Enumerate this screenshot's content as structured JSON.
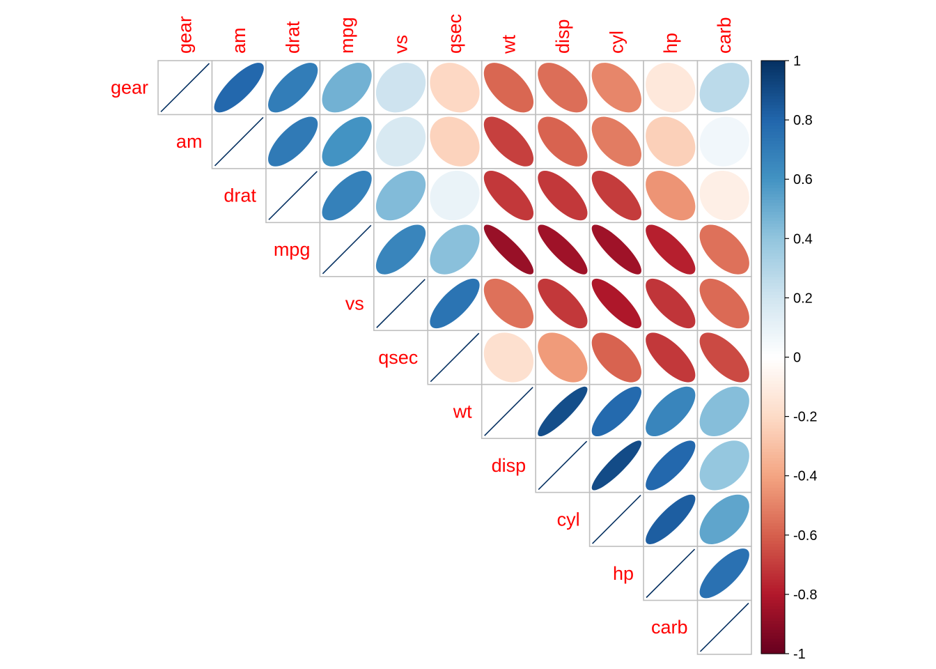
{
  "chart_data": {
    "type": "heatmap",
    "variables": [
      "gear",
      "am",
      "drat",
      "mpg",
      "vs",
      "qsec",
      "wt",
      "disp",
      "cyl",
      "hp",
      "carb"
    ],
    "matrix": [
      [
        1.0,
        0.79,
        0.7,
        0.48,
        0.21,
        -0.21,
        -0.58,
        -0.56,
        -0.49,
        -0.13,
        0.27
      ],
      [
        0.79,
        1.0,
        0.71,
        0.6,
        0.17,
        -0.23,
        -0.69,
        -0.59,
        -0.52,
        -0.24,
        0.06
      ],
      [
        0.7,
        0.71,
        1.0,
        0.68,
        0.44,
        0.09,
        -0.71,
        -0.71,
        -0.7,
        -0.45,
        -0.09
      ],
      [
        0.48,
        0.6,
        0.68,
        1.0,
        0.66,
        0.42,
        -0.87,
        -0.85,
        -0.85,
        -0.78,
        -0.55
      ],
      [
        0.21,
        0.17,
        0.44,
        0.66,
        1.0,
        0.74,
        -0.55,
        -0.71,
        -0.81,
        -0.72,
        -0.57
      ],
      [
        -0.21,
        -0.23,
        0.09,
        0.42,
        0.74,
        1.0,
        -0.17,
        -0.43,
        -0.59,
        -0.71,
        -0.66
      ],
      [
        -0.58,
        -0.69,
        -0.71,
        -0.87,
        -0.55,
        -0.17,
        1.0,
        0.89,
        0.78,
        0.66,
        0.43
      ],
      [
        -0.56,
        -0.59,
        -0.71,
        -0.85,
        -0.71,
        -0.43,
        0.89,
        1.0,
        0.9,
        0.79,
        0.39
      ],
      [
        -0.49,
        -0.52,
        -0.7,
        -0.85,
        -0.81,
        -0.59,
        0.78,
        0.9,
        1.0,
        0.83,
        0.53
      ],
      [
        -0.13,
        -0.24,
        -0.45,
        -0.78,
        -0.72,
        -0.71,
        0.66,
        0.79,
        0.83,
        1.0,
        0.75
      ],
      [
        0.27,
        0.06,
        -0.09,
        -0.55,
        -0.57,
        -0.66,
        0.43,
        0.39,
        0.53,
        0.75,
        1.0
      ]
    ],
    "display": "upper-triangle",
    "glyph": "ellipse",
    "label_color": "#ff0000",
    "colorbar": {
      "range": [
        -1,
        1
      ],
      "ticks": [
        "1",
        "0.8",
        "0.6",
        "0.4",
        "0.2",
        "0",
        "-0.2",
        "-0.4",
        "-0.6",
        "-0.8",
        "-1"
      ],
      "colors": [
        "#67001f",
        "#b2182b",
        "#d6604d",
        "#f4a582",
        "#fddbc7",
        "#ffffff",
        "#d1e5f0",
        "#92c5de",
        "#4393c3",
        "#2166ac",
        "#053061"
      ]
    }
  }
}
